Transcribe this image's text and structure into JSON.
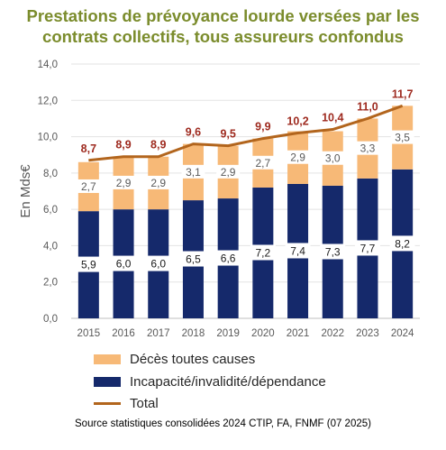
{
  "title_lines": [
    "Prestations de prévoyance lourde versées par les",
    "contrats collectifs, tous assureurs confondus"
  ],
  "source": "Source statistiques consolidées 2024 CTIP, FA, FNMF (07 2025)",
  "colors": {
    "title": "#7b8c2c",
    "deces": "#f7b977",
    "incapacite": "#15296b",
    "total": "#b2651d",
    "total_label": "#9e2a1f",
    "deces_label": "#5a5a5a"
  },
  "chart_data": {
    "type": "bar",
    "stacked": true,
    "categories": [
      "2015",
      "2016",
      "2017",
      "2018",
      "2019",
      "2020",
      "2021",
      "2022",
      "2023",
      "2024"
    ],
    "series": [
      {
        "name": "Incapacité/invalidité/dépendance",
        "values": [
          5.9,
          6.0,
          6.0,
          6.5,
          6.6,
          7.2,
          7.4,
          7.3,
          7.7,
          8.2
        ],
        "labels": [
          "5,9",
          "6,0",
          "6,0",
          "6,5",
          "6,6",
          "7,2",
          "7,4",
          "7,3",
          "7,7",
          "8,2"
        ]
      },
      {
        "name": "Décès toutes causes",
        "values": [
          2.7,
          2.9,
          2.9,
          3.1,
          2.9,
          2.7,
          2.9,
          3.0,
          3.3,
          3.5
        ],
        "labels": [
          "2,7",
          "2,9",
          "2,9",
          "3,1",
          "2,9",
          "2,7",
          "2,9",
          "3,0",
          "3,3",
          "3,5"
        ]
      },
      {
        "name": "Total",
        "type": "line",
        "values": [
          8.7,
          8.9,
          8.9,
          9.6,
          9.5,
          9.9,
          10.2,
          10.4,
          11.0,
          11.7
        ],
        "labels": [
          "8,7",
          "8,9",
          "8,9",
          "9,6",
          "9,5",
          "9,9",
          "10,2",
          "10,4",
          "11,0",
          "11,7"
        ]
      }
    ],
    "ylabel": "En Mds€",
    "ylim": [
      0,
      14
    ],
    "yticks": [
      "0,0",
      "2,0",
      "4,0",
      "6,0",
      "8,0",
      "10,0",
      "12,0",
      "14,0"
    ],
    "grid": true,
    "legend_position": "bottom"
  },
  "legend": [
    {
      "label": "Décès toutes causes",
      "kind": "bar",
      "color": "#f7b977"
    },
    {
      "label": "Incapacité/invalidité/dépendance",
      "kind": "bar",
      "color": "#15296b"
    },
    {
      "label": "Total",
      "kind": "line",
      "color": "#b2651d"
    }
  ]
}
